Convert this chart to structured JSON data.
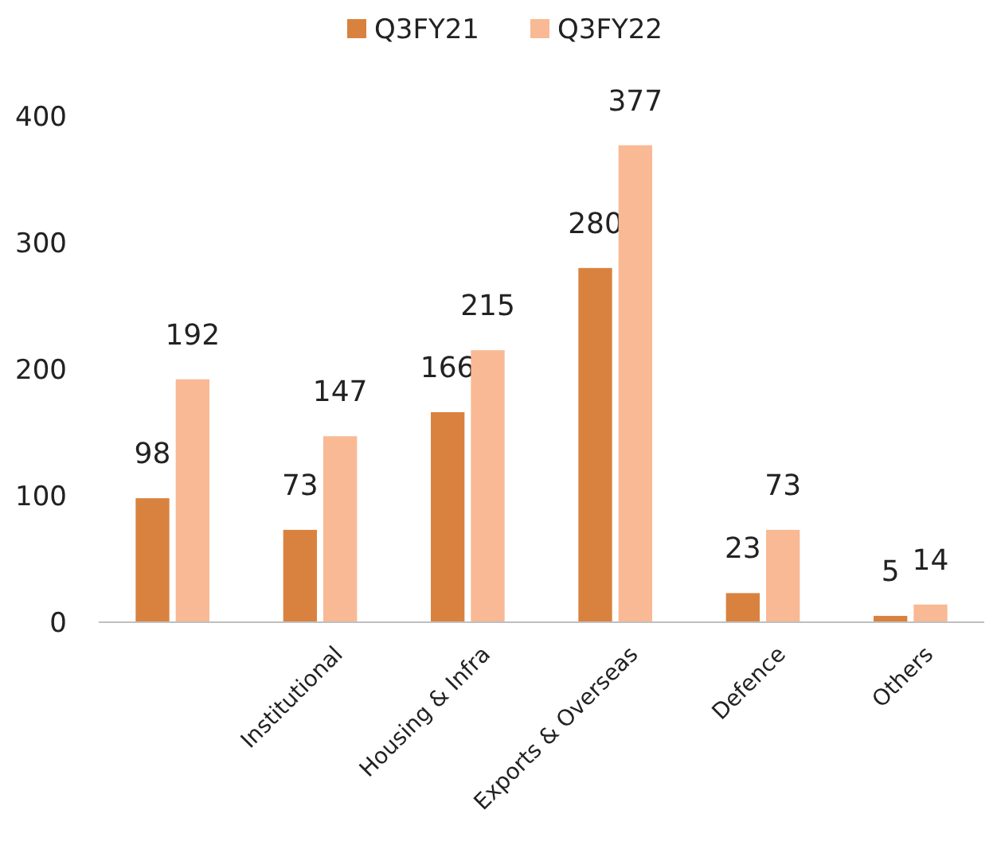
{
  "chart_data": {
    "type": "bar",
    "categories": [
      null,
      "Institutional",
      "Housing & Infra",
      "Exports & Overseas",
      "Defence",
      "Others"
    ],
    "series": [
      {
        "name": "Q3FY21",
        "color": "#d9823f",
        "values": [
          98,
          73,
          166,
          280,
          23,
          5
        ]
      },
      {
        "name": "Q3FY22",
        "color": "#f8b994",
        "values": [
          192,
          147,
          215,
          377,
          73,
          14
        ]
      }
    ],
    "ylim": [
      0,
      400
    ],
    "yticks": [
      0,
      100,
      200,
      300,
      400
    ],
    "grid": false,
    "legend": "top",
    "data_labels": true
  }
}
